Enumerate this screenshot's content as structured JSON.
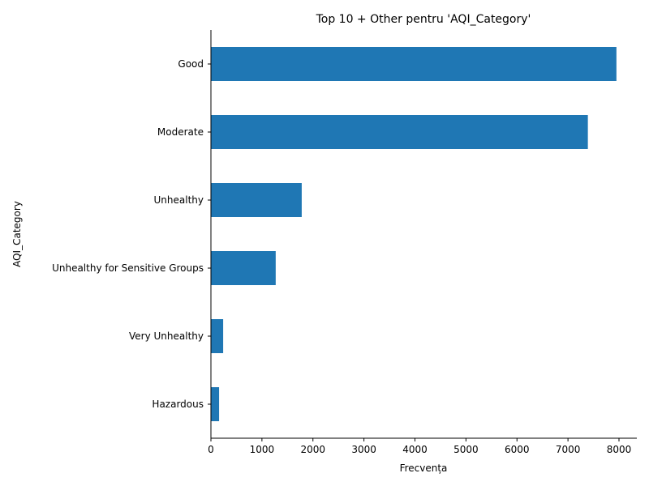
{
  "chart_data": {
    "type": "bar",
    "orientation": "horizontal",
    "title": "Top 10 + Other pentru 'AQI_Category'",
    "xlabel": "Frecvența",
    "ylabel": "AQI_Category",
    "categories": [
      "Good",
      "Moderate",
      "Unhealthy",
      "Unhealthy for Sensitive Groups",
      "Very Unhealthy",
      "Hazardous"
    ],
    "values": [
      7950,
      7390,
      1780,
      1270,
      240,
      160
    ],
    "xlim": [
      0,
      8350
    ],
    "xticks": [
      0,
      1000,
      2000,
      3000,
      4000,
      5000,
      6000,
      7000,
      8000
    ],
    "bar_color": "#1f77b4",
    "grid": false,
    "legend": "none"
  }
}
